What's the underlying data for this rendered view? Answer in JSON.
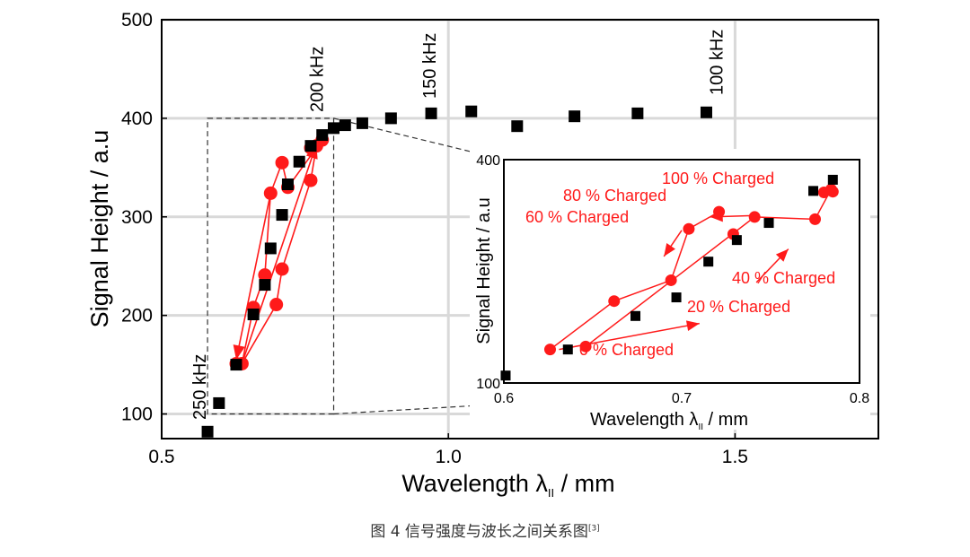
{
  "colors": {
    "black_series": "#000000",
    "red_series": "#ff1a1a",
    "grid": "#d9d9d9",
    "caption": "#333333"
  },
  "caption": {
    "text": "图 4  信号强度与波长之间关系图",
    "ref": "[3]"
  },
  "chart_data": [
    {
      "id": "main",
      "type": "scatter",
      "title": "",
      "xlabel": "Wavelength λ",
      "xlabel_subscript": "II",
      "xlabel_unit": " / mm",
      "ylabel": "Signal Height / a.u",
      "xlim": [
        0.5,
        1.75
      ],
      "ylim": [
        75,
        500
      ],
      "xticks": [
        0.5,
        1.0,
        1.5
      ],
      "xtick_labels": [
        "0.5",
        "1.0",
        "1.5"
      ],
      "yticks": [
        100,
        200,
        300,
        400,
        500
      ],
      "ytick_labels": [
        "100",
        "200",
        "300",
        "400",
        "500"
      ],
      "grid": true,
      "frequency_labels": [
        {
          "x": 0.8,
          "label": "200 kHz"
        },
        {
          "x": 1.0,
          "label": "150 kHz"
        },
        {
          "x": 1.5,
          "label": "100 kHz"
        },
        {
          "x": 0.6,
          "label": "250 kHz"
        }
      ],
      "zoom_box": {
        "x": [
          0.58,
          0.8
        ],
        "y": [
          100,
          400
        ]
      },
      "series": [
        {
          "name": "black squares",
          "marker": "square",
          "points": [
            [
              0.58,
              82
            ],
            [
              0.6,
              111
            ],
            [
              0.63,
              150
            ],
            [
              0.66,
              201
            ],
            [
              0.68,
              231
            ],
            [
              0.69,
              268
            ],
            [
              0.71,
              302
            ],
            [
              0.72,
              333
            ],
            [
              0.74,
              356
            ],
            [
              0.76,
              372
            ],
            [
              0.78,
              383
            ],
            [
              0.8,
              390
            ],
            [
              0.82,
              393
            ],
            [
              0.85,
              395
            ],
            [
              0.9,
              400
            ],
            [
              0.97,
              405
            ],
            [
              1.04,
              407
            ],
            [
              1.12,
              392
            ],
            [
              1.22,
              402
            ],
            [
              1.33,
              405
            ],
            [
              1.45,
              406
            ]
          ]
        },
        {
          "name": "red circles",
          "marker": "circle",
          "points": [
            [
              0.63,
              151
            ],
            [
              0.64,
              151
            ],
            [
              0.66,
              208
            ],
            [
              0.68,
              241
            ],
            [
              0.69,
              324
            ],
            [
              0.71,
              355
            ],
            [
              0.72,
              330
            ],
            [
              0.78,
              378
            ],
            [
              0.76,
              370
            ],
            [
              0.77,
              372
            ],
            [
              0.76,
              337
            ],
            [
              0.71,
              247
            ],
            [
              0.7,
              211
            ]
          ]
        }
      ],
      "arrows": [
        {
          "from": [
            0.69,
            324
          ],
          "to": [
            0.63,
            155
          ]
        },
        {
          "from": [
            0.64,
            151
          ],
          "to": [
            0.77,
            374
          ]
        }
      ]
    },
    {
      "id": "inset",
      "type": "scatter",
      "xlabel": "Wavelength λ",
      "xlabel_subscript": "II",
      "xlabel_unit": " / mm",
      "ylabel": "Signal Height / a.u",
      "xlim": [
        0.6,
        0.8
      ],
      "ylim": [
        100,
        400
      ],
      "xticks": [
        0.6,
        0.7,
        0.8
      ],
      "xtick_labels": [
        "0.6",
        "0.7",
        "0.8"
      ],
      "yticks": [
        100,
        400
      ],
      "ytick_labels": [
        "100",
        "400"
      ],
      "grid": false,
      "series": [
        {
          "name": "black squares",
          "marker": "square",
          "points": [
            [
              0.601,
              110
            ],
            [
              0.636,
              145
            ],
            [
              0.674,
              190
            ],
            [
              0.697,
              215
            ],
            [
              0.715,
              263
            ],
            [
              0.731,
              292
            ],
            [
              0.749,
              315
            ],
            [
              0.774,
              358
            ],
            [
              0.785,
              373
            ]
          ]
        },
        {
          "name": "red circles",
          "marker": "circle",
          "points": [
            [
              0.626,
              145
            ],
            [
              0.646,
              149
            ],
            [
              0.662,
              210
            ],
            [
              0.694,
              238
            ],
            [
              0.704,
              307
            ],
            [
              0.721,
              330
            ],
            [
              0.729,
              300
            ],
            [
              0.741,
              323
            ],
            [
              0.775,
              320
            ],
            [
              0.784,
              360
            ],
            [
              0.78,
              356
            ],
            [
              0.785,
              357
            ]
          ]
        }
      ],
      "annotations": [
        {
          "text": "100 % Charged"
        },
        {
          "text": "80 % Charged"
        },
        {
          "text": "60 % Charged"
        },
        {
          "text": "40 % Charged"
        },
        {
          "text": "20 % Charged"
        },
        {
          "text": "0 % Charged"
        }
      ],
      "arrows": [
        {
          "from": [
            0.742,
            325
          ],
          "to": [
            0.716,
            323
          ]
        },
        {
          "from": [
            0.7,
            305
          ],
          "to": [
            0.69,
            270
          ]
        },
        {
          "from": [
            0.631,
            145
          ],
          "to": [
            0.71,
            180
          ]
        },
        {
          "from": [
            0.742,
            235
          ],
          "to": [
            0.76,
            280
          ]
        }
      ]
    }
  ]
}
